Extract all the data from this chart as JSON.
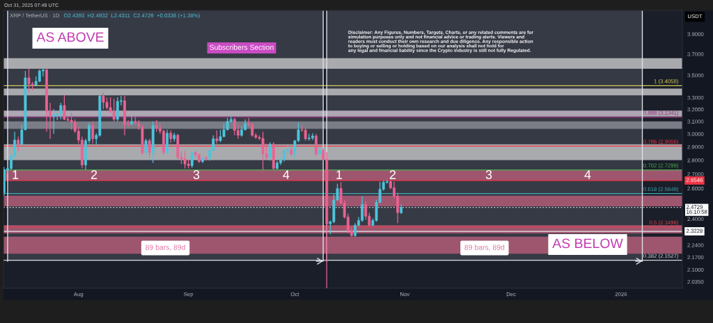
{
  "chart_data": {
    "type": "candlestick",
    "title": "XRP / TetherUS · 1D",
    "subtitle": "O2.4393  H2.4932  L2.4311  C2.4729  +0.0336 (+1.38%)",
    "ylabel": "USDT",
    "log": true,
    "xlim": [
      "2025-07-10T20:00",
      "2026-01-18T07:00"
    ],
    "ylim": [
      2.0,
      4.15
    ],
    "xticks": [
      {
        "value": "2025-08-01",
        "label": "Aug"
      },
      {
        "value": "2025-09-01",
        "label": "Sep"
      },
      {
        "value": "2025-10-01",
        "label": "Oct"
      },
      {
        "value": "2025-11-01",
        "label": "Nov"
      },
      {
        "value": "2025-12-01",
        "label": "Dec"
      },
      {
        "value": "2026-01-01",
        "label": "2026"
      }
    ],
    "yticks": [
      {
        "value": 3.9,
        "label": "3.9000"
      },
      {
        "value": 3.7,
        "label": "3.7000"
      },
      {
        "value": 3.5,
        "label": "3.5000"
      },
      {
        "value": 3.3,
        "label": "3.3000"
      },
      {
        "value": 3.2,
        "label": "3.2000"
      },
      {
        "value": 3.1,
        "label": "3.1000"
      },
      {
        "value": 3.0,
        "label": "3.0000"
      },
      {
        "value": 2.9,
        "label": "2.9000"
      },
      {
        "value": 2.8,
        "label": "2.8000"
      },
      {
        "value": 2.7,
        "label": "2.7000"
      },
      {
        "value": 2.6,
        "label": "2.6000"
      },
      {
        "value": 2.4,
        "label": "2.4000"
      },
      {
        "value": 2.24,
        "label": "2.2400"
      },
      {
        "value": 2.17,
        "label": "2.1700"
      },
      {
        "value": 2.1,
        "label": "2.1000"
      },
      {
        "value": 2.035,
        "label": "2.0350"
      }
    ],
    "x": [
      "2025-07-11",
      "2025-07-12",
      "2025-07-13",
      "2025-07-14",
      "2025-07-15",
      "2025-07-16",
      "2025-07-17",
      "2025-07-18",
      "2025-07-19",
      "2025-07-20",
      "2025-07-21",
      "2025-07-22",
      "2025-07-23",
      "2025-07-24",
      "2025-07-25",
      "2025-07-26",
      "2025-07-27",
      "2025-07-28",
      "2025-07-29",
      "2025-07-30",
      "2025-07-31",
      "2025-08-01",
      "2025-08-02",
      "2025-08-03",
      "2025-08-04",
      "2025-08-05",
      "2025-08-06",
      "2025-08-07",
      "2025-08-08",
      "2025-08-09",
      "2025-08-10",
      "2025-08-11",
      "2025-08-12",
      "2025-08-13",
      "2025-08-14",
      "2025-08-15",
      "2025-08-16",
      "2025-08-17",
      "2025-08-18",
      "2025-08-19",
      "2025-08-20",
      "2025-08-21",
      "2025-08-22",
      "2025-08-23",
      "2025-08-24",
      "2025-08-25",
      "2025-08-26",
      "2025-08-27",
      "2025-08-28",
      "2025-08-29",
      "2025-08-30",
      "2025-08-31",
      "2025-09-01",
      "2025-09-02",
      "2025-09-03",
      "2025-09-04",
      "2025-09-05",
      "2025-09-06",
      "2025-09-07",
      "2025-09-08",
      "2025-09-09",
      "2025-09-10",
      "2025-09-11",
      "2025-09-12",
      "2025-09-13",
      "2025-09-14",
      "2025-09-15",
      "2025-09-16",
      "2025-09-17",
      "2025-09-18",
      "2025-09-19",
      "2025-09-20",
      "2025-09-21",
      "2025-09-22",
      "2025-09-23",
      "2025-09-24",
      "2025-09-25",
      "2025-09-26",
      "2025-09-27",
      "2025-09-28",
      "2025-09-29",
      "2025-09-30",
      "2025-10-01",
      "2025-10-02",
      "2025-10-03",
      "2025-10-04",
      "2025-10-05",
      "2025-10-06",
      "2025-10-07",
      "2025-10-08",
      "2025-10-09",
      "2025-10-10",
      "2025-10-11",
      "2025-10-12",
      "2025-10-13",
      "2025-10-14",
      "2025-10-15",
      "2025-10-16",
      "2025-10-17",
      "2025-10-18",
      "2025-10-19",
      "2025-10-20",
      "2025-10-21",
      "2025-10-22",
      "2025-10-23",
      "2025-10-24",
      "2025-10-25",
      "2025-10-26",
      "2025-10-27",
      "2025-10-28",
      "2025-10-29",
      "2025-10-30",
      "2025-10-31"
    ],
    "ohlc": [
      [
        2.57,
        2.75,
        2.55,
        2.73
      ],
      [
        2.73,
        2.78,
        2.7,
        2.74
      ],
      [
        2.74,
        2.846,
        2.73,
        2.831
      ],
      [
        2.831,
        3.017,
        2.82,
        2.952
      ],
      [
        2.952,
        2.979,
        2.867,
        2.92
      ],
      [
        2.92,
        3.072,
        2.909,
        3.033
      ],
      [
        3.033,
        3.54,
        3.028,
        3.477
      ],
      [
        3.477,
        3.563,
        3.346,
        3.42
      ],
      [
        3.42,
        3.44,
        3.364,
        3.407
      ],
      [
        3.407,
        3.489,
        3.4,
        3.445
      ],
      [
        3.445,
        3.553,
        3.438,
        3.54
      ],
      [
        3.54,
        3.56,
        3.49,
        3.55
      ],
      [
        3.55,
        3.56,
        3.017,
        3.186
      ],
      [
        3.186,
        3.256,
        2.962,
        3.14
      ],
      [
        3.14,
        3.203,
        3.0,
        3.15
      ],
      [
        3.15,
        3.186,
        3.111,
        3.163
      ],
      [
        3.163,
        3.256,
        3.117,
        3.233
      ],
      [
        3.233,
        3.322,
        3.111,
        3.117
      ],
      [
        3.117,
        3.146,
        3.1,
        3.11
      ],
      [
        3.11,
        3.169,
        3.033,
        3.095
      ],
      [
        3.095,
        3.117,
        3.008,
        3.022
      ],
      [
        3.022,
        3.055,
        2.926,
        2.952
      ],
      [
        2.952,
        2.979,
        2.74,
        2.765
      ],
      [
        2.765,
        2.962,
        2.73,
        2.947
      ],
      [
        2.947,
        3.089,
        2.926,
        3.067
      ],
      [
        3.067,
        3.1,
        2.926,
        2.962
      ],
      [
        2.962,
        3.006,
        2.92,
        2.989
      ],
      [
        2.989,
        3.322,
        2.979,
        3.316
      ],
      [
        3.316,
        3.346,
        3.203,
        3.26
      ],
      [
        3.26,
        3.3,
        3.2,
        3.215
      ],
      [
        3.215,
        3.304,
        3.169,
        3.186
      ],
      [
        3.186,
        3.29,
        3.1,
        3.117
      ],
      [
        3.117,
        3.304,
        3.1,
        3.268
      ],
      [
        3.268,
        3.316,
        3.233,
        3.274
      ],
      [
        3.274,
        3.316,
        2.989,
        3.072
      ],
      [
        3.085,
        3.111,
        3.056,
        3.078
      ],
      [
        3.078,
        3.146,
        3.072,
        3.1
      ],
      [
        3.1,
        3.14,
        3.072,
        3.089
      ],
      [
        3.083,
        3.111,
        3.033,
        3.061
      ],
      [
        3.056,
        3.072,
        2.84,
        2.857
      ],
      [
        2.857,
        2.962,
        2.84,
        2.947
      ],
      [
        2.947,
        2.962,
        2.82,
        2.857
      ],
      [
        2.857,
        3.1,
        2.78,
        3.067
      ],
      [
        3.067,
        3.111,
        3.017,
        3.044
      ],
      [
        3.044,
        3.083,
        3.0,
        3.022
      ],
      [
        3.022,
        3.033,
        2.84,
        2.857
      ],
      [
        2.857,
        3.033,
        2.84,
        3.006
      ],
      [
        3.006,
        3.028,
        2.93,
        2.962
      ],
      [
        2.962,
        3.01,
        2.94,
        2.99
      ],
      [
        2.99,
        3.0,
        2.805,
        2.82
      ],
      [
        2.82,
        2.867,
        2.772,
        2.81
      ],
      [
        2.81,
        2.867,
        2.74,
        2.772
      ],
      [
        2.772,
        2.805,
        2.74,
        2.76
      ],
      [
        2.76,
        2.867,
        2.745,
        2.857
      ],
      [
        2.857,
        2.872,
        2.82,
        2.841
      ],
      [
        2.841,
        2.846,
        2.78,
        2.79
      ],
      [
        2.79,
        2.82,
        2.78,
        2.815
      ],
      [
        2.815,
        2.831,
        2.797,
        2.81
      ],
      [
        2.81,
        2.883,
        2.797,
        2.872
      ],
      [
        2.872,
        2.989,
        2.867,
        2.962
      ],
      [
        2.962,
        3.028,
        2.926,
        2.947
      ],
      [
        2.947,
        3.033,
        2.936,
        2.979
      ],
      [
        2.979,
        3.083,
        2.973,
        3.033
      ],
      [
        3.033,
        3.129,
        3.028,
        3.1
      ],
      [
        3.1,
        3.14,
        3.089,
        3.117
      ],
      [
        3.117,
        3.129,
        2.989,
        3.028
      ],
      [
        3.028,
        3.072,
        2.962,
        2.989
      ],
      [
        2.989,
        3.064,
        2.979,
        3.033
      ],
      [
        3.033,
        3.117,
        3.028,
        3.083
      ],
      [
        3.083,
        3.129,
        3.056,
        3.075
      ],
      [
        3.075,
        3.089,
        2.979,
        2.989
      ],
      [
        2.989,
        3.006,
        2.962,
        2.973
      ],
      [
        2.973,
        2.989,
        2.952,
        2.965
      ],
      [
        2.965,
        3.017,
        2.73,
        2.846
      ],
      [
        2.846,
        2.925,
        2.805,
        2.82
      ],
      [
        2.82,
        2.936,
        2.797,
        2.92
      ],
      [
        2.92,
        2.936,
        2.73,
        2.74
      ],
      [
        2.74,
        2.795,
        2.73,
        2.78
      ],
      [
        2.78,
        2.82,
        2.765,
        2.805
      ],
      [
        2.805,
        2.883,
        2.79,
        2.867
      ],
      [
        2.867,
        2.92,
        2.846,
        2.876
      ],
      [
        2.876,
        2.893,
        2.831,
        2.846
      ],
      [
        2.846,
        2.952,
        2.815,
        2.947
      ],
      [
        2.947,
        3.089,
        2.936,
        3.033
      ],
      [
        3.033,
        3.072,
        3.017,
        3.03
      ],
      [
        3.03,
        3.056,
        2.947,
        2.962
      ],
      [
        2.962,
        3.0,
        2.947,
        2.968
      ],
      [
        2.968,
        3.006,
        2.952,
        2.984
      ],
      [
        2.984,
        3.0,
        2.831,
        2.846
      ],
      [
        2.846,
        2.893,
        2.84,
        2.872
      ],
      [
        2.872,
        2.893,
        2.797,
        2.805
      ],
      [
        2.805,
        2.86,
        2.0,
        2.369
      ],
      [
        2.369,
        2.39,
        2.305,
        2.382
      ],
      [
        2.382,
        2.561,
        2.373,
        2.522
      ],
      [
        2.522,
        2.632,
        2.515,
        2.599
      ],
      [
        2.599,
        2.642,
        2.493,
        2.502
      ],
      [
        2.502,
        2.524,
        2.403,
        2.412
      ],
      [
        2.412,
        2.434,
        2.31,
        2.326
      ],
      [
        2.326,
        2.347,
        2.29,
        2.297
      ],
      [
        2.297,
        2.373,
        2.29,
        2.36
      ],
      [
        2.36,
        2.412,
        2.354,
        2.39
      ],
      [
        2.39,
        2.547,
        2.382,
        2.493
      ],
      [
        2.493,
        2.515,
        2.395,
        2.417
      ],
      [
        2.417,
        2.439,
        2.354,
        2.36
      ],
      [
        2.36,
        2.403,
        2.354,
        2.39
      ],
      [
        2.39,
        2.524,
        2.382,
        2.506
      ],
      [
        2.506,
        2.647,
        2.502,
        2.594
      ],
      [
        2.594,
        2.656,
        2.585,
        2.642
      ],
      [
        2.642,
        2.66,
        2.632,
        2.647
      ],
      [
        2.647,
        2.656,
        2.594,
        2.604
      ],
      [
        2.604,
        2.647,
        2.533,
        2.547
      ],
      [
        2.547,
        2.57,
        2.373,
        2.4393
      ],
      [
        2.4393,
        2.4932,
        2.4311,
        2.4729
      ]
    ],
    "colors": [
      "#4dc5dc",
      "#4dc5dc",
      "#4dc5dc",
      "#4dc5dc",
      "#ea6393",
      "#4dc5dc",
      "#4dc5dc",
      "#ea6393",
      "#ea6393",
      "#4dc5dc",
      "#4dc5dc",
      "#4dc5dc",
      "#ea6393",
      "#ea6393",
      "#4dc5dc",
      "#4dc5dc",
      "#4dc5dc",
      "#ea6393",
      "#ea6393",
      "#ea6393",
      "#ea6393",
      "#ea6393",
      "#ea6393",
      "#4dc5dc",
      "#4dc5dc",
      "#ea6393",
      "#4dc5dc",
      "#4dc5dc",
      "#ea6393",
      "#ea6393",
      "#ea6393",
      "#ea6393",
      "#4dc5dc",
      "#4dc5dc",
      "#ea6393",
      "#ea6393",
      "#4dc5dc",
      "#ea6393",
      "#ea6393",
      "#ea6393",
      "#4dc5dc",
      "#ea6393",
      "#4dc5dc",
      "#ea6393",
      "#ea6393",
      "#ea6393",
      "#4dc5dc",
      "#ea6393",
      "#4dc5dc",
      "#ea6393",
      "#ea6393",
      "#ea6393",
      "#ea6393",
      "#4dc5dc",
      "#ea6393",
      "#ea6393",
      "#4dc5dc",
      "#ea6393",
      "#4dc5dc",
      "#4dc5dc",
      "#ea6393",
      "#4dc5dc",
      "#4dc5dc",
      "#4dc5dc",
      "#4dc5dc",
      "#ea6393",
      "#ea6393",
      "#4dc5dc",
      "#4dc5dc",
      "#ea6393",
      "#ea6393",
      "#ea6393",
      "#ea6393",
      "#ea6393",
      "#ea6393",
      "#4dc5dc",
      "#ea6393",
      "#4dc5dc",
      "#4dc5dc",
      "#4dc5dc",
      "#4dc5dc",
      "#ea6393",
      "#4dc5dc",
      "#4dc5dc",
      "#ea6393",
      "#ea6393",
      "#4dc5dc",
      "#4dc5dc",
      "#ea6393",
      "#4dc5dc",
      "#ea6393",
      "#ea6393",
      "#4dc5dc",
      "#4dc5dc",
      "#4dc5dc",
      "#ea6393",
      "#ea6393",
      "#ea6393",
      "#ea6393",
      "#4dc5dc",
      "#4dc5dc",
      "#4dc5dc",
      "#ea6393",
      "#ea6393",
      "#4dc5dc",
      "#4dc5dc",
      "#4dc5dc",
      "#4dc5dc",
      "#4dc5dc",
      "#ea6393",
      "#ea6393",
      "#ea6393",
      "#4dc5dc"
    ],
    "ref_lines": [
      {
        "axis": "y",
        "value": 3.4058,
        "label": "1 (3.4058)",
        "color": "#d4c95a"
      },
      {
        "axis": "y",
        "value": 3.1341,
        "label": "0.888 (3.1341)",
        "color": "#96357f"
      },
      {
        "axis": "y",
        "value": 2.9056,
        "label": "0.786 (2.9056)",
        "color": "#f23645"
      },
      {
        "axis": "y",
        "value": 2.7299,
        "label": "0.702 (2.7299)",
        "color": "#4caf50"
      },
      {
        "axis": "y",
        "value": 2.6546,
        "color": "#f23645"
      },
      {
        "axis": "y",
        "value": 2.5649,
        "label": "0.618 (2.5649)",
        "color": "#3fa7b5"
      },
      {
        "axis": "y",
        "value": 2.4729,
        "color": "#d1d4dc",
        "line_style": "dotted"
      },
      {
        "axis": "y",
        "value": 2.3498,
        "label": "0.5 (2.3498)",
        "color": "#e0424f"
      },
      {
        "axis": "y",
        "value": 2.3228,
        "color": "#e8e8ee"
      },
      {
        "axis": "y",
        "value": 2.1527,
        "label": "0.382 (2.1527)",
        "color": "#d1d4dc"
      }
    ],
    "bands": [
      {
        "axis": "x",
        "from": "2025-07-12",
        "to": "2025-10-09",
        "label": "89 bars, 89d",
        "color": "#363a45"
      },
      {
        "axis": "x",
        "from": "2025-10-10",
        "to": "2026-01-07",
        "label": "89 bars, 89d",
        "color": "#363a45"
      },
      {
        "axis": "y",
        "from": 3.56,
        "to": 3.66,
        "color": "#a9aaae"
      },
      {
        "axis": "y",
        "from": 3.32,
        "to": 3.38,
        "color": "#a9aaae"
      },
      {
        "axis": "y",
        "from": 3.14,
        "to": 3.19,
        "color": "#aea6b3"
      },
      {
        "axis": "y",
        "from": 3.04,
        "to": 3.1,
        "color": "#7a7d86"
      },
      {
        "axis": "y",
        "from": 2.8,
        "to": 2.92,
        "color": "#a9aaae"
      },
      {
        "axis": "y",
        "from": 2.6546,
        "to": 2.7299,
        "color": "#9e566f"
      },
      {
        "axis": "y",
        "from": 2.48,
        "to": 2.55,
        "color": "#9e566f"
      },
      {
        "axis": "y",
        "from": 2.31,
        "to": 2.36,
        "color": "#9e566f"
      },
      {
        "axis": "y",
        "from": 2.19,
        "to": 2.29,
        "color": "#9e566f"
      }
    ],
    "annotations": [
      "Oct 31, 2025 07:49 UTC",
      "AS ABOVE",
      "Subscribers Section",
      "Disclaimer: Any Figures, Numbers, Targets, Charts, or any related comments are for\nsimulation purposes only and not financial advice or trading alerts. Viewers and\nreaders must conduct their own research and due diligence. Any responsible action\nto buying or selling or holding based on our analysis shall not hold for\nany legal and financial liability since the Crypto industry is still not fully Regulated.",
      "AS BELOW",
      "1",
      "2",
      "3",
      "4",
      "1",
      "2",
      "3",
      "4",
      {
        "text": "2.6546",
        "x": "2026-01-18T07:00",
        "y": 2.6546
      },
      {
        "text": "2.4729\n16:10:58",
        "x": "2026-01-18T07:00",
        "y": 2.4729
      },
      {
        "text": "2.3228",
        "x": "2026-01-18T07:00",
        "y": 2.3228
      }
    ]
  }
}
